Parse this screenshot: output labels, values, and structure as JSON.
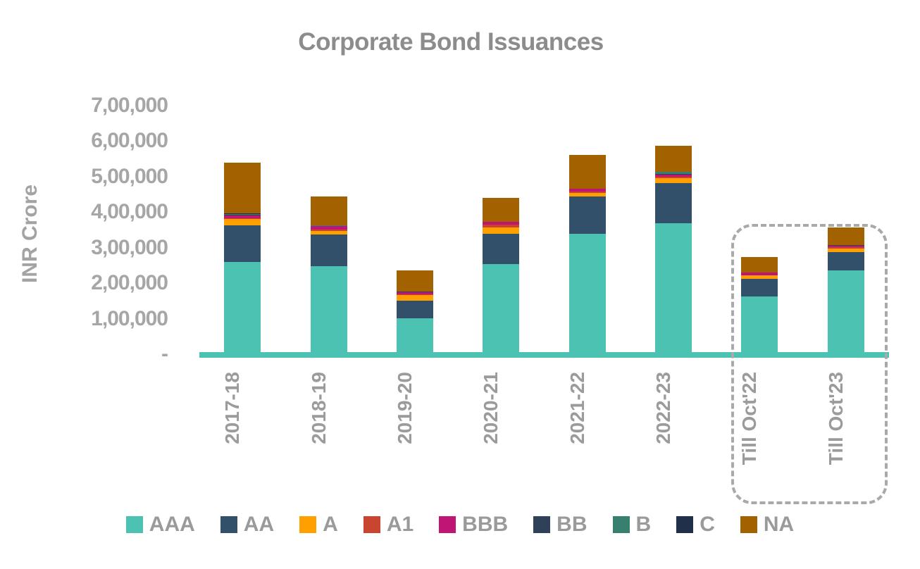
{
  "title": "Corporate Bond Issuances",
  "y_axis": {
    "label": "INR Crore",
    "ticks": [
      {
        "value": 700000,
        "label": "7,00,000"
      },
      {
        "value": 600000,
        "label": "6,00,000"
      },
      {
        "value": 500000,
        "label": "5,00,000"
      },
      {
        "value": 400000,
        "label": "4,00,000"
      },
      {
        "value": 300000,
        "label": "3,00,000"
      },
      {
        "value": 200000,
        "label": "2,00,000"
      },
      {
        "value": 100000,
        "label": "1,00,000"
      },
      {
        "value": 0,
        "label": "-"
      }
    ]
  },
  "colors": {
    "axis_line": "#4bc2b2",
    "highlight_box_border": "#a9a9a9",
    "title_text": "#8c8c8c",
    "axis_text": "#a6a6a6"
  },
  "highlight_box": {
    "applies_to": [
      "Till Oct'22",
      "Till Oct'23"
    ]
  },
  "chart_data": {
    "type": "bar",
    "stacked": true,
    "title": "Corporate Bond Issuances",
    "xlabel": "",
    "ylabel": "INR Crore",
    "ylim": [
      0,
      700000
    ],
    "grid": false,
    "legend_position": "bottom",
    "categories": [
      "2017-18",
      "2018-19",
      "2019-20",
      "2020-21",
      "2021-22",
      "2022-23",
      "Till Oct'22",
      "Till Oct'23"
    ],
    "series": [
      {
        "name": "AAA",
        "color": "#4bc2b2",
        "values": [
          260000,
          248000,
          102000,
          254000,
          340000,
          368000,
          163000,
          236000
        ]
      },
      {
        "name": "AA",
        "color": "#33506b",
        "values": [
          102000,
          90000,
          48000,
          85000,
          104000,
          113000,
          50000,
          52000
        ]
      },
      {
        "name": "A",
        "color": "#ffa000",
        "values": [
          18000,
          10000,
          16000,
          18000,
          11000,
          15000,
          9000,
          9000
        ]
      },
      {
        "name": "A1",
        "color": "#c9452f",
        "values": [
          2000,
          4000,
          2000,
          7000,
          3000,
          4000,
          1000,
          4000
        ]
      },
      {
        "name": "BBB",
        "color": "#c01574",
        "values": [
          8000,
          8000,
          7000,
          8000,
          8000,
          6000,
          7000,
          5000
        ]
      },
      {
        "name": "BB",
        "color": "#2e4159",
        "values": [
          3000,
          1000,
          1000,
          1000,
          1000,
          1000,
          1000,
          1000
        ]
      },
      {
        "name": "B",
        "color": "#37806f",
        "values": [
          2000,
          1000,
          0,
          0,
          0,
          7000,
          0,
          0
        ]
      },
      {
        "name": "C",
        "color": "#20304a",
        "values": [
          1000,
          0,
          0,
          0,
          0,
          0,
          0,
          0
        ]
      },
      {
        "name": "NA",
        "color": "#a26200",
        "values": [
          144000,
          82000,
          60000,
          67000,
          94000,
          74000,
          43000,
          51000
        ]
      }
    ],
    "totals": [
      540000,
      444000,
      236000,
      440000,
      561000,
      588000,
      274000,
      358000
    ]
  }
}
